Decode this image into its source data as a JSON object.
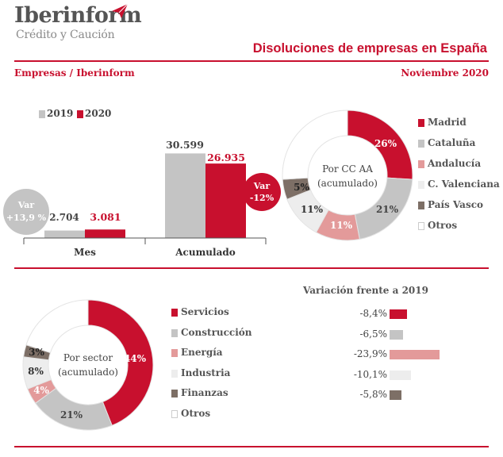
{
  "brand": {
    "name": "Iberinform",
    "tagline": "Crédito y Caución",
    "color": "#c8102e"
  },
  "header": {
    "title": "Disoluciones de empresas en España",
    "source": "Empresas / Iberinform",
    "period": "Noviembre 2020"
  },
  "chart_data": [
    {
      "type": "bar",
      "series": [
        {
          "name": "2019",
          "color": "#c4c4c4",
          "values": [
            2704,
            30599
          ],
          "labels": [
            "2.704",
            "30.599"
          ]
        },
        {
          "name": "2020",
          "color": "#c8102e",
          "values": [
            3081,
            26935
          ],
          "labels": [
            "3.081",
            "26.935"
          ]
        }
      ],
      "categories": [
        "Mes",
        "Acumulado"
      ],
      "annotations": [
        {
          "line1": "Var",
          "line2": "+13,9 %",
          "color": "#c4c4c4"
        },
        {
          "line1": "Var",
          "line2": "-12%",
          "color": "#c8102e"
        }
      ],
      "legend": "top-left"
    },
    {
      "type": "pie",
      "style": "donut",
      "center_label": [
        "Por CC AA",
        "(acumulado)"
      ],
      "categories": [
        "Madrid",
        "Cataluña",
        "Andalucía",
        "C. Valenciana",
        "País Vasco",
        "Otros"
      ],
      "values": [
        26,
        21,
        11,
        11,
        5,
        26
      ],
      "labels": [
        "26%",
        "21%",
        "11%",
        "11%",
        "5%",
        ""
      ],
      "colors": [
        "#c8102e",
        "#c4c4c4",
        "#e39a9a",
        "#ededed",
        "#7d6f66",
        "#ffffff"
      ],
      "legend": "right"
    },
    {
      "type": "pie",
      "style": "donut",
      "center_label": [
        "Por sector",
        "(acumulado)"
      ],
      "categories": [
        "Servicios",
        "Construcción",
        "Energía",
        "Industria",
        "Finanzas",
        "Otros"
      ],
      "values": [
        44,
        21,
        4,
        8,
        3,
        20
      ],
      "labels": [
        "44%",
        "21%",
        "4%",
        "8%",
        "3%",
        ""
      ],
      "colors": [
        "#c8102e",
        "#c4c4c4",
        "#e39a9a",
        "#ededed",
        "#7d6f66",
        "#ffffff"
      ],
      "legend": "right"
    },
    {
      "type": "bar",
      "orientation": "horizontal",
      "title": "Variación frente a 2019",
      "categories": [
        "Servicios",
        "Construcción",
        "Energía",
        "Industria",
        "Finanzas"
      ],
      "values": [
        -8.4,
        -6.5,
        -23.9,
        -10.1,
        -5.8
      ],
      "labels": [
        "-8,4%",
        "-6,5%",
        "-23,9%",
        "-10,1%",
        "-5,8%"
      ],
      "colors": [
        "#c8102e",
        "#c4c4c4",
        "#e39a9a",
        "#ededed",
        "#7d6f66"
      ]
    }
  ]
}
